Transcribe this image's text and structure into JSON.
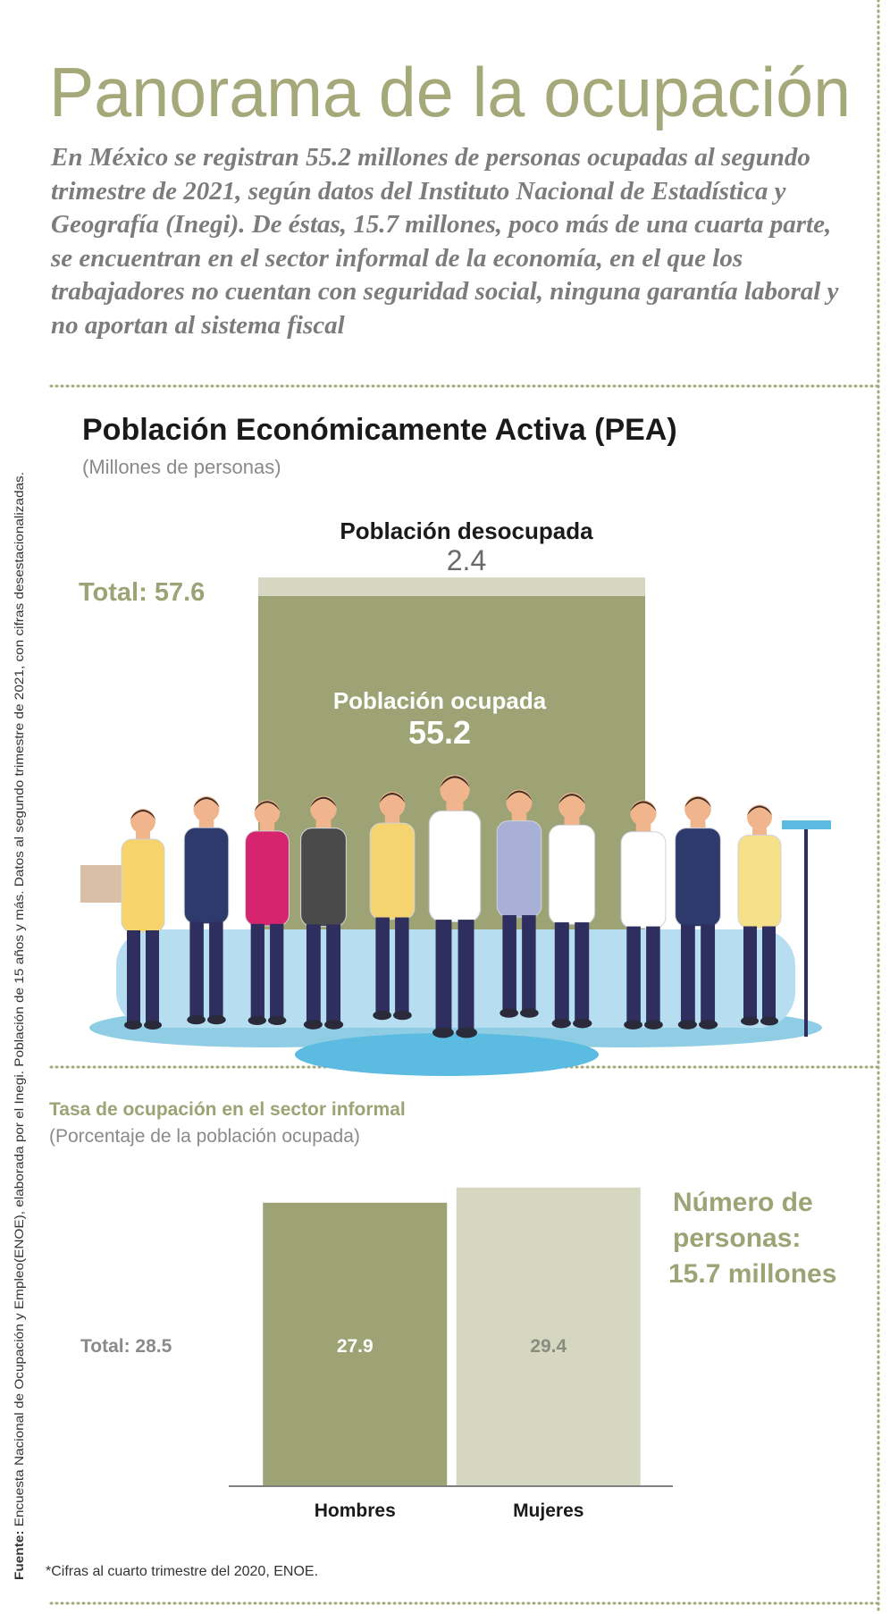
{
  "header": {
    "title": "Panorama de la ocupación",
    "intro": "En México se registran 55.2 millones de personas ocupadas al segundo trimestre de 2021, según datos del Instituto Nacional de Estadística y Geografía (Inegi). De éstas, 15.7 millones, poco más de una cuarta parte, se encuentran en el sector informal de la economía, en el que los trabajadores no cuentan con seguridad social, ninguna garantía laboral y no aportan al sistema fiscal"
  },
  "chart_data": [
    {
      "type": "bar",
      "stacked": true,
      "title": "Población Económicamente Activa (PEA)",
      "subtitle": "(Millones de personas)",
      "total_label": "Total: 57.6",
      "categories": [
        null
      ],
      "series": [
        {
          "name": "Población ocupada",
          "color": "#9da374",
          "values": [
            55.2
          ]
        },
        {
          "name": "Población desocupada",
          "color": "#d5d7c1",
          "values": [
            2.4
          ]
        }
      ],
      "ylim": [
        0,
        60
      ]
    },
    {
      "type": "bar",
      "title": "Tasa de ocupación en el sector informal",
      "subtitle": "(Porcentaje de la población ocupada)",
      "total_label": "Total: 28.5",
      "annotation": [
        "Número de",
        "personas:",
        "15.7 millones"
      ],
      "categories": [
        "Hombres",
        "Mujeres"
      ],
      "values": [
        27.9,
        29.4
      ],
      "colors": [
        "#9da374",
        "#d5d7c1"
      ],
      "ylim": [
        0,
        30
      ]
    }
  ],
  "footnote": "*Cifras al cuarto trimestre del 2020, ENOE.",
  "source": {
    "label": "Fuente:",
    "text": " Encuesta Nacional de Ocupación y Empleo(ENOE), elaborada por el Inegi. Población de 15 años y más. Datos al segundo trimestre de 2021, con cifras desestacionalizadas."
  }
}
